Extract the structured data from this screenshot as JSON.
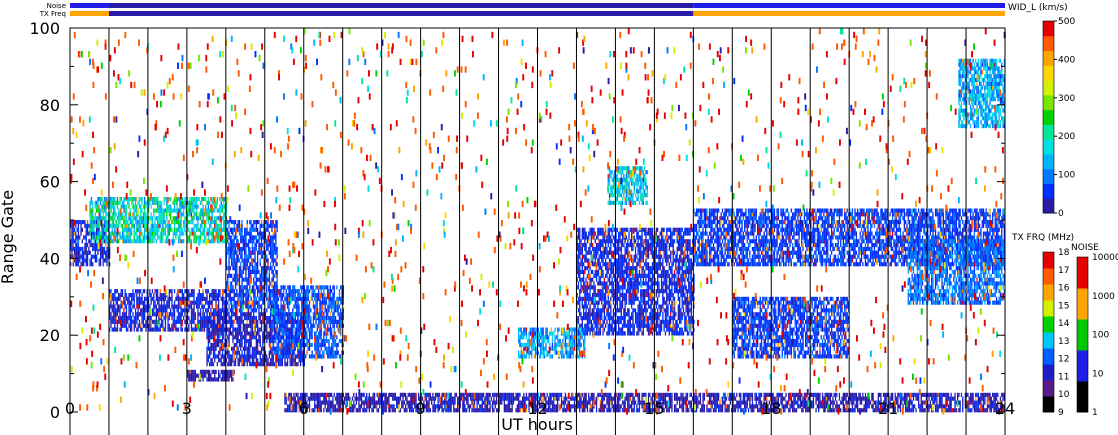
{
  "header": {
    "noise_label": "Noise",
    "txfreq_label": "TX Freq"
  },
  "chart_data": {
    "type": "heatmap",
    "xlabel": "UT hours",
    "ylabel": "Range Gate",
    "xlim": [
      0,
      24
    ],
    "ylim": [
      0,
      100
    ],
    "xticks": [
      0,
      3,
      6,
      9,
      12,
      15,
      18,
      21,
      24
    ],
    "yticks": [
      0,
      20,
      40,
      60,
      80,
      100
    ],
    "scan_boundaries_hours": [
      1,
      2,
      3,
      4,
      5,
      6,
      7,
      8,
      9,
      10,
      11,
      12,
      13,
      14,
      15,
      16,
      17,
      18,
      19,
      20,
      21,
      22,
      23
    ],
    "noise_bar": [
      {
        "start": 0,
        "end": 1,
        "color": "#1e1ee6"
      },
      {
        "start": 1,
        "end": 16,
        "color": "#2a1aa8"
      },
      {
        "start": 16,
        "end": 24,
        "color": "#1e1ee6"
      }
    ],
    "freq_bar": [
      {
        "start": 0,
        "end": 1,
        "color": "#ffa500"
      },
      {
        "start": 1,
        "end": 16,
        "color": "#2a1aa8"
      },
      {
        "start": 16,
        "end": 24,
        "color": "#ffa500"
      }
    ],
    "echo_regions": [
      {
        "t0": 0.0,
        "t1": 1.0,
        "g0": 38,
        "g1": 50,
        "level": 40
      },
      {
        "t0": 1.0,
        "t1": 4.0,
        "g0": 21,
        "g1": 32,
        "level": 40
      },
      {
        "t0": 4.0,
        "t1": 5.3,
        "g0": 26,
        "g1": 50,
        "level": 60
      },
      {
        "t0": 0.5,
        "t1": 4.0,
        "g0": 44,
        "g1": 56,
        "level": 180
      },
      {
        "t0": 3.5,
        "t1": 6.0,
        "g0": 12,
        "g1": 26,
        "level": 35
      },
      {
        "t0": 5.2,
        "t1": 7.0,
        "g0": 14,
        "g1": 33,
        "level": 70
      },
      {
        "t0": 5.5,
        "t1": 16.0,
        "g0": 0,
        "g1": 5,
        "level": 30
      },
      {
        "t0": 13.0,
        "t1": 16.0,
        "g0": 20,
        "g1": 48,
        "level": 45
      },
      {
        "t0": 16.0,
        "t1": 24.0,
        "g0": 38,
        "g1": 53,
        "level": 60
      },
      {
        "t0": 21.5,
        "t1": 24.0,
        "g0": 28,
        "g1": 45,
        "level": 90
      },
      {
        "t0": 17.0,
        "t1": 20.0,
        "g0": 14,
        "g1": 30,
        "level": 60
      },
      {
        "t0": 22.8,
        "t1": 24.0,
        "g0": 74,
        "g1": 92,
        "level": 130
      },
      {
        "t0": 16.0,
        "t1": 24.0,
        "g0": 0,
        "g1": 5,
        "level": 30
      },
      {
        "t0": 11.5,
        "t1": 13.2,
        "g0": 14,
        "g1": 22,
        "level": 120
      },
      {
        "t0": 3.0,
        "t1": 4.2,
        "g0": 8,
        "g1": 11,
        "level": 30
      },
      {
        "t0": 13.8,
        "t1": 14.8,
        "g0": 54,
        "g1": 64,
        "level": 160
      }
    ],
    "velocity_scale": {
      "title": "WID_L (km/s)",
      "min": 0,
      "max": 500,
      "ticks": [
        0,
        100,
        200,
        300,
        400,
        500
      ],
      "colors": [
        "#2a1aa8",
        "#0030ff",
        "#0078ff",
        "#00b4ff",
        "#00e0e0",
        "#00e69a",
        "#00d200",
        "#78e600",
        "#d2f000",
        "#ffd700",
        "#ffa500",
        "#ff5a00",
        "#e60000"
      ]
    },
    "txfreq_scale": {
      "title": "TX FRQ (MHz)",
      "ticks": [
        "9",
        "10",
        "11",
        "12",
        "13",
        "14",
        "15",
        "16",
        "17",
        "18"
      ],
      "colors": [
        "#000000",
        "#5a1a8c",
        "#1e1ec8",
        "#0060ff",
        "#00c8ff",
        "#00d200",
        "#d2f000",
        "#ffa500",
        "#ff5a00",
        "#e60000"
      ]
    },
    "noise_scale": {
      "title": "NOISE",
      "ticks": [
        "1",
        "10",
        "100",
        "1000",
        "10000"
      ],
      "colors": [
        "#000000",
        "#1e1ee6",
        "#00c800",
        "#ffa500",
        "#e60000"
      ]
    }
  }
}
